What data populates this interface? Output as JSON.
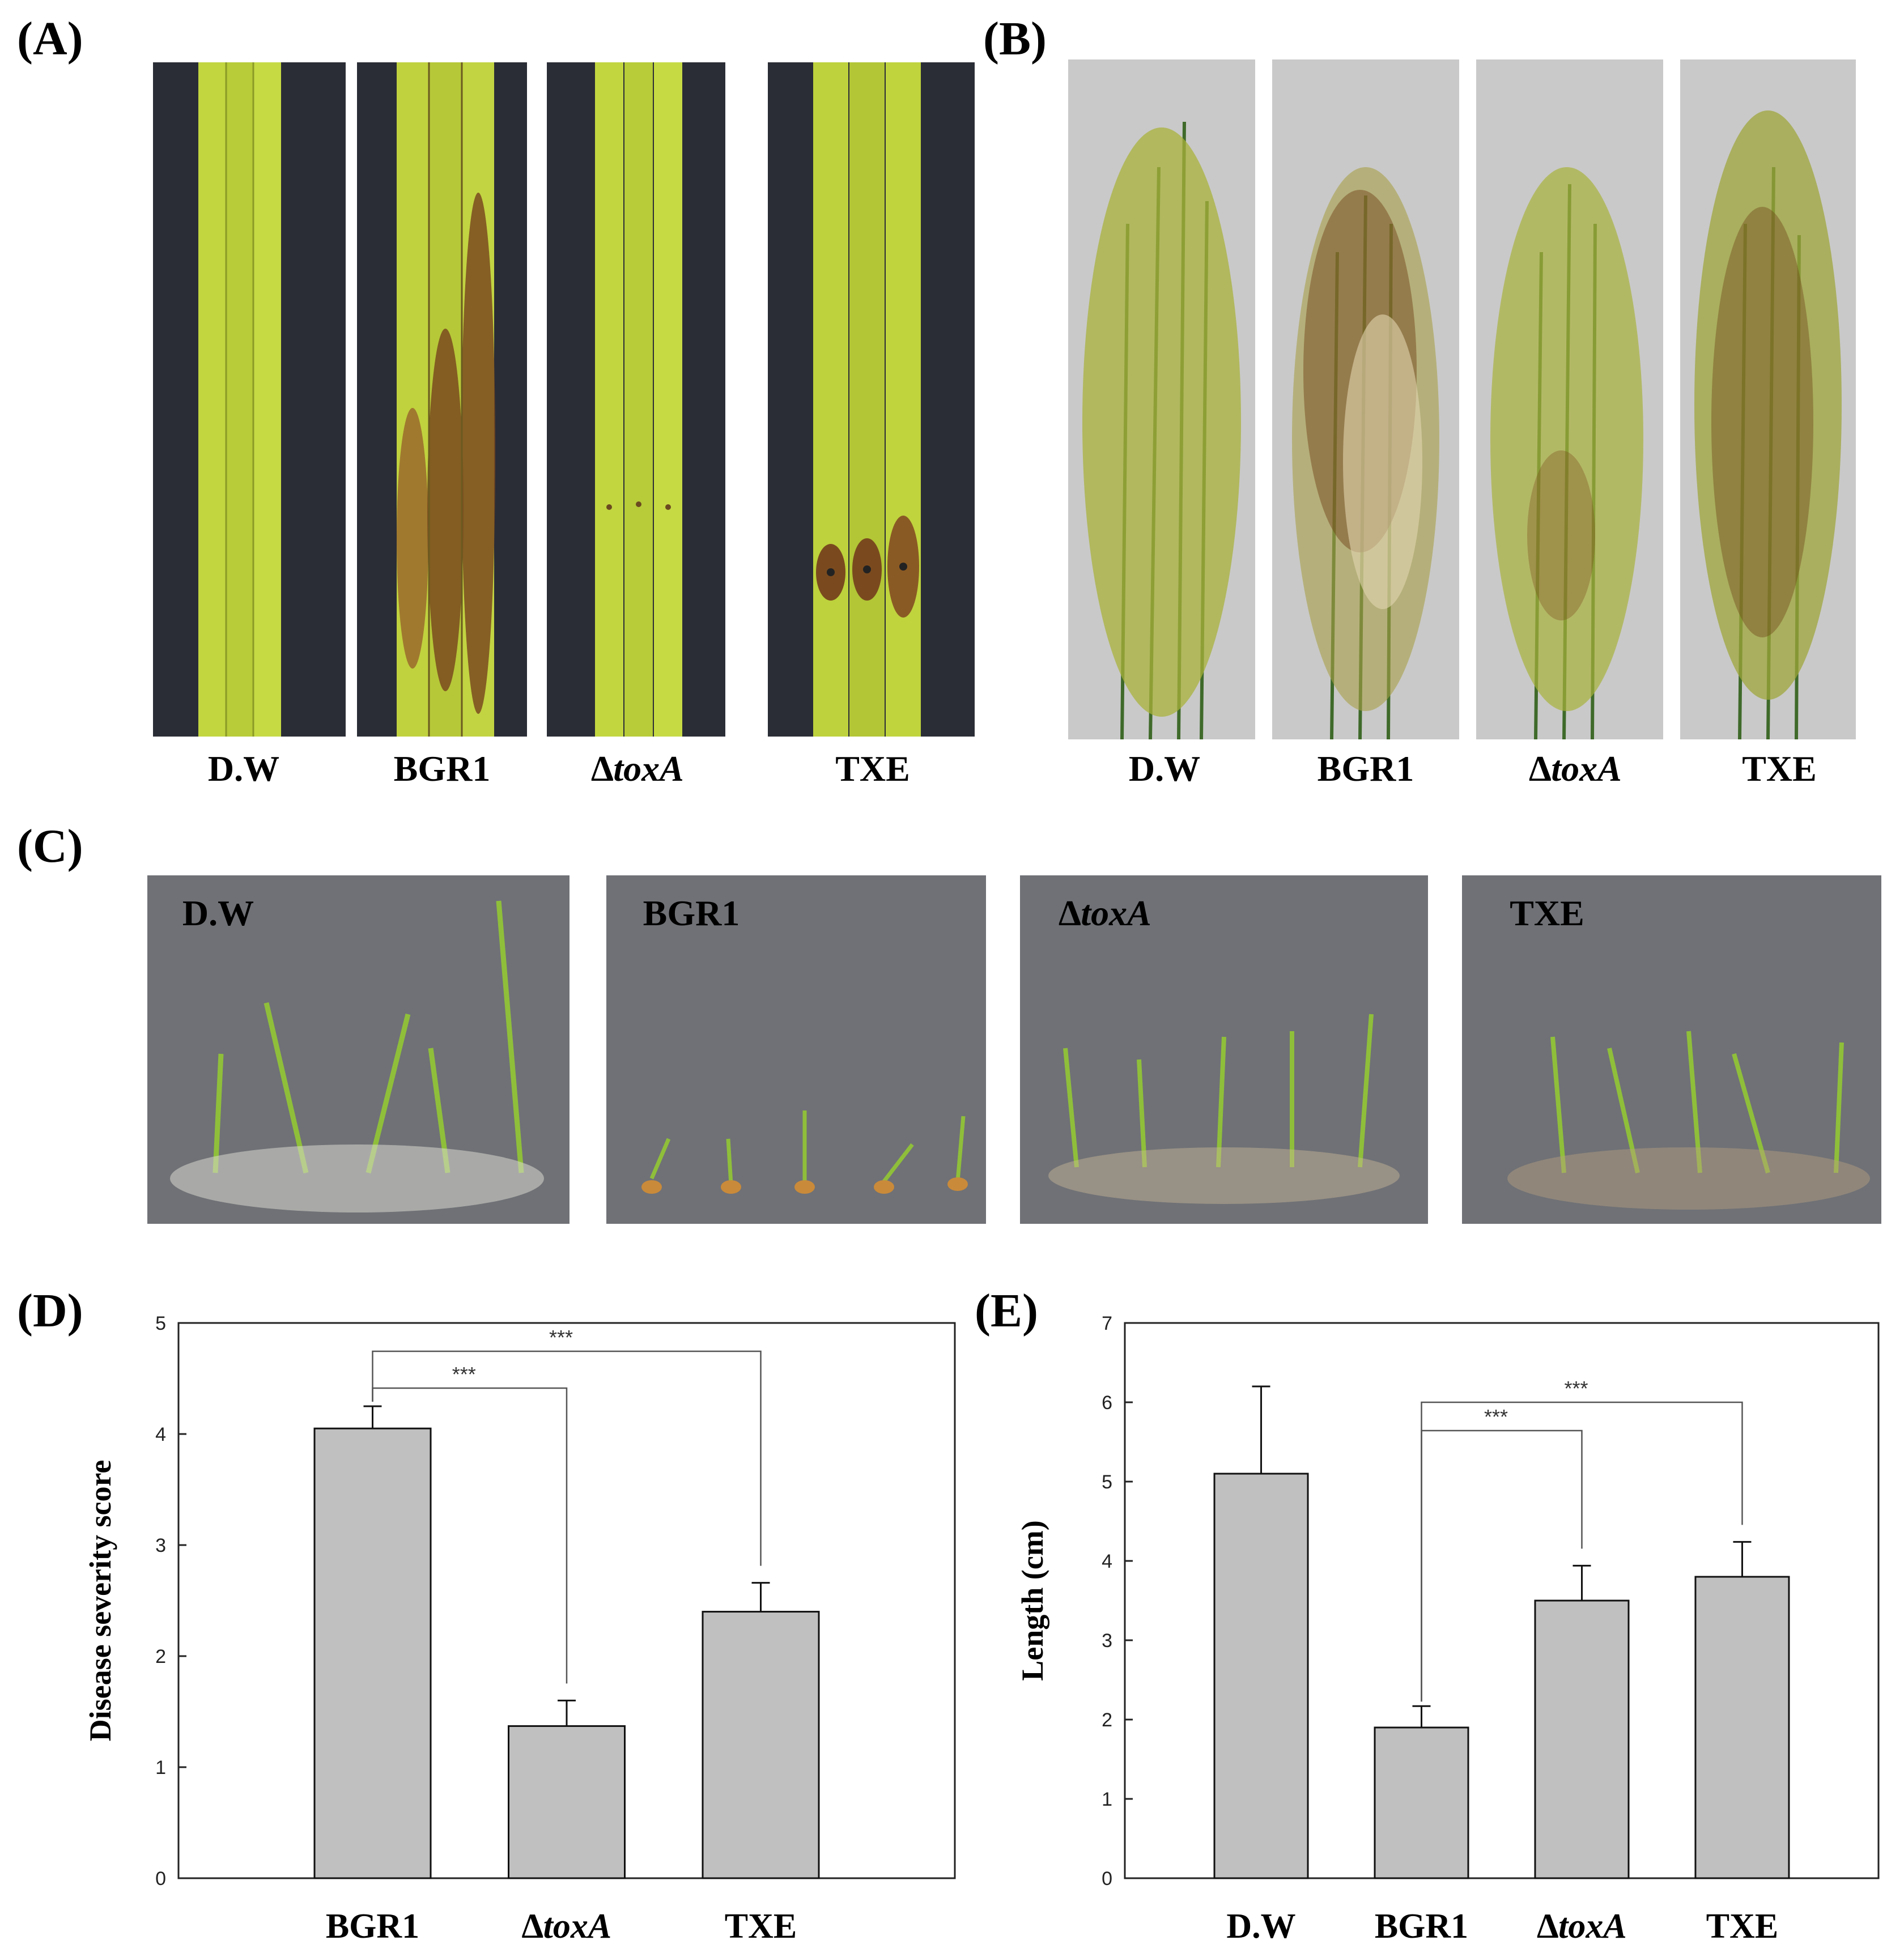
{
  "panels": {
    "a": {
      "letter": "(A)",
      "labels": [
        "D.W",
        "BGR1",
        "∆",
        "toxA",
        "TXE"
      ]
    },
    "b": {
      "letter": "(B)",
      "labels": [
        "D.W",
        "BGR1",
        "∆",
        "toxA",
        "TXE"
      ]
    },
    "c": {
      "letter": "(C)",
      "labels": [
        "D.W",
        "BGR1",
        "∆",
        "toxA",
        "TXE"
      ]
    },
    "d": {
      "letter": "(D)"
    },
    "e": {
      "letter": "(E)"
    }
  },
  "colors": {
    "bar_fill": "#c0c0c0",
    "leaf_green": "#b5cc3a",
    "lesion_brown": "#7a4a1e",
    "photo_dark_bg": "#2b2d36",
    "photo_light_bg": "#c9c9c9",
    "seedling_bg": "#6f7176"
  },
  "chart_data": [
    {
      "type": "bar",
      "panel": "D",
      "categories": [
        "BGR1",
        "∆toxA",
        "TXE"
      ],
      "values": [
        4.05,
        1.37,
        2.4
      ],
      "errors": [
        0.2,
        0.23,
        0.26
      ],
      "ylabel": "Disease severity score",
      "ylim": [
        0,
        5
      ],
      "yticks": [
        0,
        1,
        2,
        3,
        4,
        5
      ],
      "significance": [
        {
          "from": 0,
          "to": 1,
          "label": "***"
        },
        {
          "from": 0,
          "to": 2,
          "label": "***"
        }
      ]
    },
    {
      "type": "bar",
      "panel": "E",
      "categories": [
        "D.W",
        "BGR1",
        "∆toxA",
        "TXE"
      ],
      "values": [
        5.1,
        1.9,
        3.5,
        3.8
      ],
      "errors": [
        1.1,
        0.27,
        0.44,
        0.44
      ],
      "ylabel": "Length (cm)",
      "ylim": [
        0,
        7
      ],
      "yticks": [
        0,
        1,
        2,
        3,
        4,
        5,
        6,
        7
      ],
      "significance": [
        {
          "from": 1,
          "to": 2,
          "label": "***"
        },
        {
          "from": 1,
          "to": 3,
          "label": "***"
        }
      ]
    }
  ]
}
